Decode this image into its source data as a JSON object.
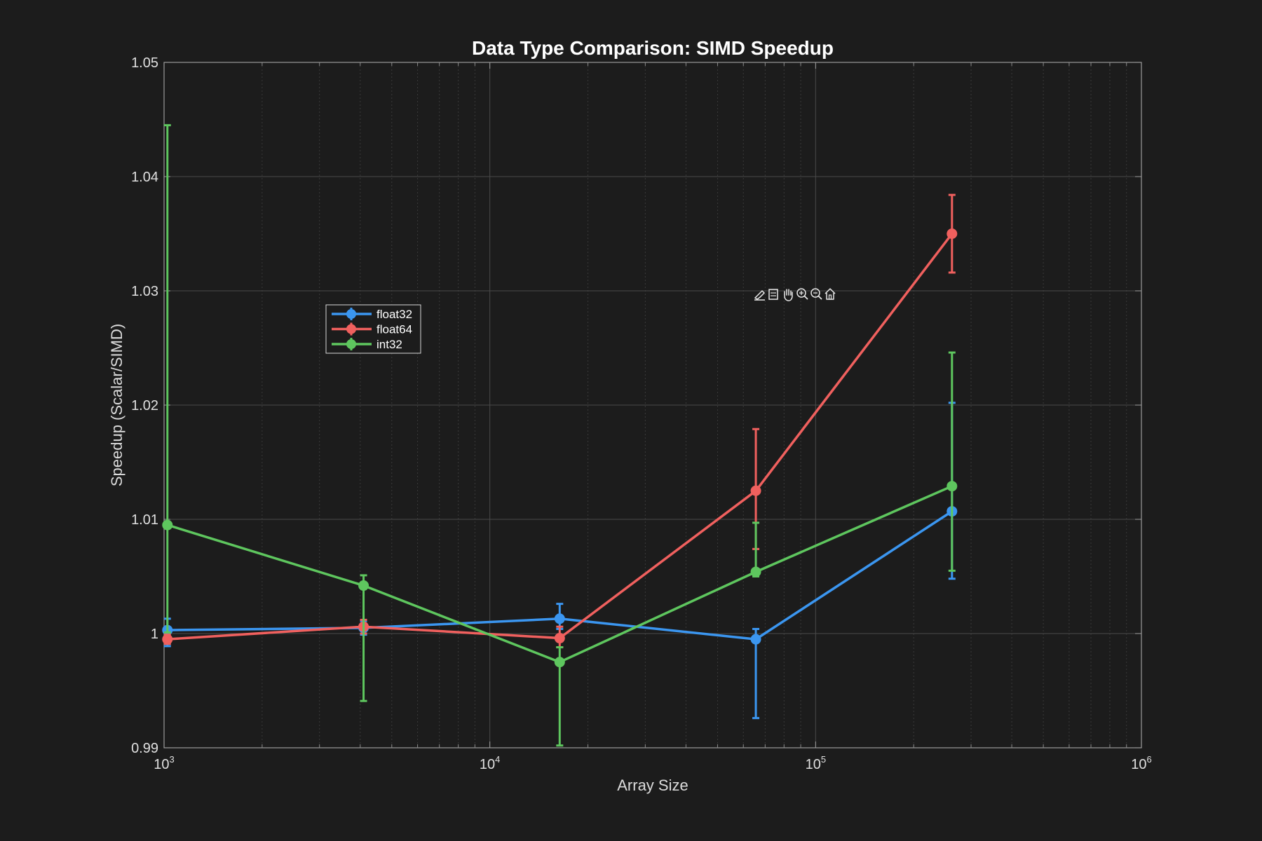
{
  "chart_data": {
    "type": "line",
    "title": "Data Type Comparison: SIMD Speedup",
    "xlabel": "Array Size",
    "ylabel": "Speedup (Scalar/SIMD)",
    "xscale": "log",
    "xlim": [
      1000,
      1000000
    ],
    "ylim": [
      0.99,
      1.05
    ],
    "yticks": [
      0.99,
      1,
      1.01,
      1.02,
      1.03,
      1.04,
      1.05
    ],
    "ytick_labels": [
      "0.99",
      "1",
      "1.01",
      "1.02",
      "1.03",
      "1.04",
      "1.05"
    ],
    "xticks": [
      1000,
      10000,
      100000,
      1000000
    ],
    "xtick_labels": [
      {
        "base": "10",
        "exp": "3"
      },
      {
        "base": "10",
        "exp": "4"
      },
      {
        "base": "10",
        "exp": "5"
      },
      {
        "base": "10",
        "exp": "6"
      }
    ],
    "grid": true,
    "legend_position": "upper-left",
    "x": [
      1024,
      4096,
      16384,
      65536,
      262144
    ],
    "series": [
      {
        "name": "float32",
        "color": "#3b96f0",
        "values": [
          1.0003,
          1.0005,
          1.0013,
          0.9995,
          1.0107
        ],
        "err_low": [
          0.9989,
          0.9999,
          1.0004,
          0.9926,
          1.0048
        ],
        "err_high": [
          1.0013,
          1.0011,
          1.0026,
          1.0004,
          1.0202
        ]
      },
      {
        "name": "float64",
        "color": "#f0605e",
        "values": [
          0.9995,
          1.0006,
          0.9996,
          1.0125,
          1.035
        ],
        "err_low": [
          0.9991,
          1.0,
          0.9988,
          1.0074,
          1.0316
        ],
        "err_high": [
          0.9999,
          1.0012,
          1.0006,
          1.0179,
          1.0384
        ]
      },
      {
        "name": "int32",
        "color": "#5ec65e",
        "values": [
          1.0095,
          1.0042,
          0.9975,
          1.0054,
          1.0129
        ],
        "err_low": [
          1.0001,
          0.9941,
          0.9902,
          1.005,
          1.0055
        ],
        "err_high": [
          1.0445,
          1.0051,
          0.9988,
          1.0097,
          1.0246
        ]
      }
    ]
  },
  "toolbar": {
    "icons": [
      "export-icon",
      "data-tips-icon",
      "pan-icon",
      "zoom-in-icon",
      "zoom-out-icon",
      "home-icon"
    ]
  }
}
